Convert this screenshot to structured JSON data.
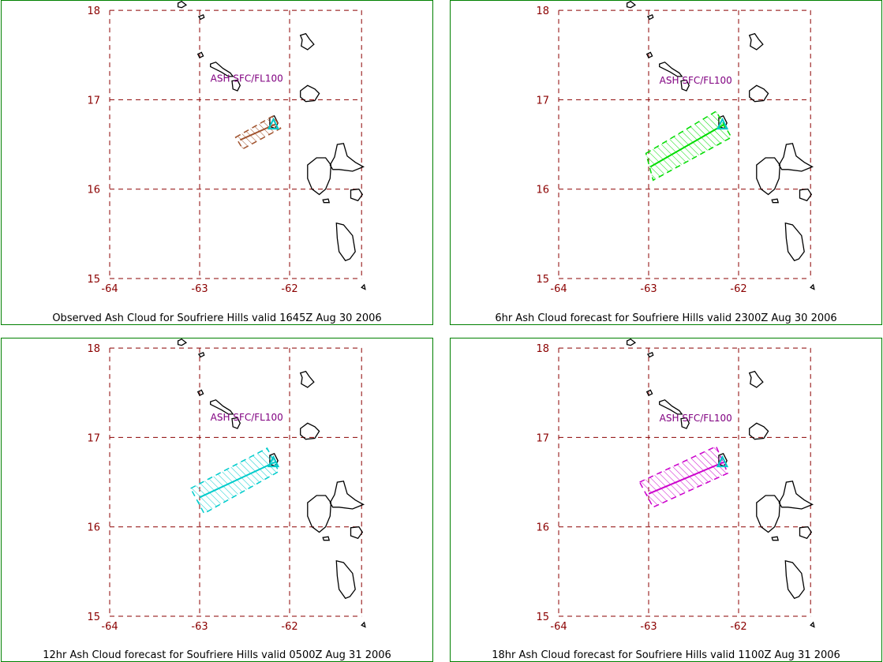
{
  "colors": {
    "grid": "#8b0000",
    "tick_label": "#8b0000",
    "coastline": "#000000",
    "ash_label": "#800080",
    "volcano": "#00c8c8",
    "panel_border": "#008000"
  },
  "axes": {
    "lon_range": [
      -64,
      -61.2
    ],
    "lat_range": [
      15,
      18
    ],
    "lon_ticks": [
      "-64",
      "-63",
      "-62"
    ],
    "lat_ticks": [
      "18",
      "17",
      "16",
      "15"
    ]
  },
  "volcano": {
    "name": "Soufriere Hills",
    "lon": -62.18,
    "lat": 16.72
  },
  "panels": [
    {
      "caption": "Observed Ash Cloud for Soufriere  Hills valid 1645Z Aug 30 2006",
      "ash_label": "ASH SFC/FL100",
      "ash_label_pos": {
        "lon": -62.88,
        "lat": 17.2
      },
      "cloud_color": "#a0522d",
      "cloud_polygon": [
        [
          -62.6,
          16.58
        ],
        [
          -62.18,
          16.82
        ],
        [
          -62.1,
          16.68
        ],
        [
          -62.52,
          16.45
        ]
      ],
      "axis_line": [
        [
          -62.55,
          16.55
        ],
        [
          -62.15,
          16.73
        ]
      ]
    },
    {
      "caption": "6hr Ash Cloud forecast for Soufriere  Hills valid 2300Z Aug 30 2006",
      "ash_label": "ASH SFC/FL100",
      "ash_label_pos": {
        "lon": -62.88,
        "lat": 17.18
      },
      "cloud_color": "#00dd00",
      "cloud_polygon": [
        [
          -63.03,
          16.4
        ],
        [
          -62.25,
          16.87
        ],
        [
          -62.08,
          16.58
        ],
        [
          -62.95,
          16.1
        ]
      ],
      "axis_line": [
        [
          -62.98,
          16.25
        ],
        [
          -62.15,
          16.73
        ]
      ]
    },
    {
      "caption": "12hr Ash Cloud forecast for Soufriere  Hills valid 0500Z Aug 31 2006",
      "ash_label": "ASH SFC/FL100",
      "ash_label_pos": {
        "lon": -62.88,
        "lat": 17.19
      },
      "cloud_color": "#00cccc",
      "cloud_polygon": [
        [
          -63.1,
          16.43
        ],
        [
          -62.25,
          16.88
        ],
        [
          -62.12,
          16.62
        ],
        [
          -62.95,
          16.15
        ]
      ],
      "axis_line": [
        [
          -63.0,
          16.33
        ],
        [
          -62.15,
          16.73
        ]
      ]
    },
    {
      "caption": "18hr Ash Cloud forecast for Soufriere  Hills valid 1100Z Aug 31 2006",
      "ash_label": "ASH SFC/FL100",
      "ash_label_pos": {
        "lon": -62.88,
        "lat": 17.18
      },
      "cloud_color": "#cc00cc",
      "cloud_polygon": [
        [
          -63.1,
          16.5
        ],
        [
          -62.25,
          16.9
        ],
        [
          -62.12,
          16.6
        ],
        [
          -62.95,
          16.22
        ]
      ],
      "axis_line": [
        [
          -63.0,
          16.37
        ],
        [
          -62.15,
          16.73
        ]
      ]
    }
  ],
  "islands": [
    {
      "name": "Saba",
      "points": [
        [
          -63.24,
          18.08
        ],
        [
          -63.2,
          18.1
        ],
        [
          -63.15,
          18.06
        ],
        [
          -63.2,
          18.03
        ],
        [
          -63.24,
          18.04
        ]
      ]
    },
    {
      "name": "Sint Eustatius",
      "points": [
        [
          -63.01,
          17.93
        ],
        [
          -62.96,
          17.95
        ],
        [
          -62.95,
          17.92
        ],
        [
          -62.99,
          17.9
        ]
      ]
    },
    {
      "name": "Anguilla-cay",
      "points": [
        [
          -63.02,
          17.51
        ],
        [
          -62.98,
          17.53
        ],
        [
          -62.96,
          17.49
        ],
        [
          -63.0,
          17.47
        ]
      ]
    },
    {
      "name": "St Kitts",
      "points": [
        [
          -62.88,
          17.4
        ],
        [
          -62.82,
          17.42
        ],
        [
          -62.74,
          17.35
        ],
        [
          -62.66,
          17.3
        ],
        [
          -62.63,
          17.26
        ],
        [
          -62.68,
          17.26
        ],
        [
          -62.76,
          17.31
        ],
        [
          -62.84,
          17.35
        ],
        [
          -62.88,
          17.37
        ]
      ]
    },
    {
      "name": "Nevis",
      "points": [
        [
          -62.64,
          17.21
        ],
        [
          -62.58,
          17.22
        ],
        [
          -62.55,
          17.16
        ],
        [
          -62.58,
          17.1
        ],
        [
          -62.63,
          17.12
        ]
      ]
    },
    {
      "name": "Barbuda",
      "points": [
        [
          -61.88,
          17.72
        ],
        [
          -61.82,
          17.74
        ],
        [
          -61.78,
          17.68
        ],
        [
          -61.73,
          17.62
        ],
        [
          -61.8,
          17.56
        ],
        [
          -61.87,
          17.6
        ],
        [
          -61.86,
          17.67
        ]
      ]
    },
    {
      "name": "Antigua",
      "points": [
        [
          -61.88,
          17.1
        ],
        [
          -61.8,
          17.16
        ],
        [
          -61.72,
          17.12
        ],
        [
          -61.67,
          17.07
        ],
        [
          -61.72,
          16.99
        ],
        [
          -61.82,
          16.98
        ],
        [
          -61.88,
          17.03
        ]
      ]
    },
    {
      "name": "Montserrat",
      "points": [
        [
          -62.22,
          16.8
        ],
        [
          -62.17,
          16.82
        ],
        [
          -62.13,
          16.74
        ],
        [
          -62.16,
          16.68
        ],
        [
          -62.22,
          16.7
        ]
      ]
    },
    {
      "name": "Guadeloupe Basse-Terre",
      "points": [
        [
          -61.7,
          16.35
        ],
        [
          -61.6,
          16.35
        ],
        [
          -61.54,
          16.27
        ],
        [
          -61.55,
          16.12
        ],
        [
          -61.6,
          16.0
        ],
        [
          -61.67,
          15.94
        ],
        [
          -61.75,
          16.0
        ],
        [
          -61.8,
          16.12
        ],
        [
          -61.8,
          16.27
        ]
      ]
    },
    {
      "name": "Guadeloupe Grande-Terre",
      "points": [
        [
          -61.55,
          16.27
        ],
        [
          -61.5,
          16.36
        ],
        [
          -61.47,
          16.5
        ],
        [
          -61.4,
          16.51
        ],
        [
          -61.36,
          16.37
        ],
        [
          -61.27,
          16.3
        ],
        [
          -61.18,
          16.25
        ],
        [
          -61.3,
          16.2
        ],
        [
          -61.45,
          16.22
        ],
        [
          -61.52,
          16.22
        ]
      ]
    },
    {
      "name": "Marie-Galante",
      "points": [
        [
          -61.32,
          15.99
        ],
        [
          -61.23,
          16.0
        ],
        [
          -61.19,
          15.94
        ],
        [
          -61.24,
          15.87
        ],
        [
          -61.32,
          15.9
        ]
      ]
    },
    {
      "name": "Les Saintes",
      "points": [
        [
          -61.63,
          15.88
        ],
        [
          -61.57,
          15.89
        ],
        [
          -61.56,
          15.85
        ],
        [
          -61.62,
          15.85
        ]
      ]
    },
    {
      "name": "Dominica",
      "points": [
        [
          -61.48,
          15.62
        ],
        [
          -61.4,
          15.6
        ],
        [
          -61.3,
          15.48
        ],
        [
          -61.27,
          15.3
        ],
        [
          -61.33,
          15.22
        ],
        [
          -61.38,
          15.2
        ],
        [
          -61.45,
          15.3
        ],
        [
          -61.47,
          15.45
        ]
      ]
    },
    {
      "name": "Martinique tip",
      "points": [
        [
          -61.2,
          14.9
        ],
        [
          -61.17,
          14.93
        ],
        [
          -61.16,
          14.88
        ]
      ]
    }
  ]
}
